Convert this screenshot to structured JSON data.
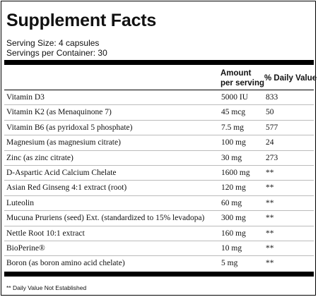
{
  "title": "Supplement Facts",
  "serving_size": "Serving Size: 4 capsules",
  "servings_per_container": "Servings per Container: 30",
  "columns": {
    "amount_line1": "Amount",
    "amount_line2": "per serving",
    "daily_value": "% Daily Value"
  },
  "rows": [
    {
      "name": "Vitamin D3",
      "amount": "5000 IU",
      "dv": "833"
    },
    {
      "name": "Vitamin K2 (as Menaquinone 7)",
      "amount": "45 mcg",
      "dv": "50"
    },
    {
      "name": "Vitamin B6 (as pyridoxal 5 phosphate)",
      "amount": "7.5 mg",
      "dv": "577"
    },
    {
      "name": "Magnesium (as magnesium citrate)",
      "amount": "100 mg",
      "dv": "24"
    },
    {
      "name": "Zinc (as zinc citrate)",
      "amount": "30 mg",
      "dv": "273"
    },
    {
      "name": "D-Aspartic Acid Calcium Chelate",
      "amount": "1600 mg",
      "dv": "**"
    },
    {
      "name": "Asian Red Ginseng 4:1 extract (root)",
      "amount": "120 mg",
      "dv": "**"
    },
    {
      "name": "Luteolin",
      "amount": "60 mg",
      "dv": "**"
    },
    {
      "name": "Mucuna Pruriens (seed) Ext. (standardized to 15% levadopa)",
      "amount": "300 mg",
      "dv": "**"
    },
    {
      "name": "Nettle Root 10:1 extract",
      "amount": "160 mg",
      "dv": "**"
    },
    {
      "name": "BioPerine®",
      "amount": "10 mg",
      "dv": "**"
    },
    {
      "name": "Boron (as boron amino acid chelate)",
      "amount": "5 mg",
      "dv": "**"
    }
  ],
  "footnote": "** Daily Value Not Established"
}
